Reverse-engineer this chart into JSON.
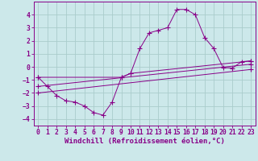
{
  "background_color": "#cce8ea",
  "grid_color": "#aacccc",
  "line_color": "#880088",
  "marker_color": "#880088",
  "xlabel": "Windchill (Refroidissement éolien,°C)",
  "xlim": [
    -0.5,
    23.5
  ],
  "ylim": [
    -4.5,
    5.0
  ],
  "yticks": [
    -4,
    -3,
    -2,
    -1,
    0,
    1,
    2,
    3,
    4
  ],
  "xticks": [
    0,
    1,
    2,
    3,
    4,
    5,
    6,
    7,
    8,
    9,
    10,
    11,
    12,
    13,
    14,
    15,
    16,
    17,
    18,
    19,
    20,
    21,
    22,
    23
  ],
  "series1_x": [
    0,
    1,
    2,
    3,
    4,
    5,
    6,
    7,
    8,
    9,
    10,
    11,
    12,
    13,
    14,
    15,
    16,
    17,
    18,
    19,
    20,
    21,
    22,
    23
  ],
  "series1_y": [
    -0.8,
    -1.5,
    -2.2,
    -2.6,
    -2.7,
    -3.0,
    -3.5,
    -3.7,
    -2.7,
    -0.8,
    -0.5,
    1.4,
    2.6,
    2.8,
    3.0,
    4.4,
    4.4,
    4.0,
    2.25,
    1.4,
    -0.05,
    -0.1,
    0.4,
    0.45
  ],
  "series2_x": [
    0,
    9,
    10,
    23
  ],
  "series2_y": [
    -0.8,
    -0.8,
    -0.5,
    0.45
  ],
  "series3_x": [
    0,
    23
  ],
  "series3_y": [
    -1.5,
    0.2
  ],
  "series4_x": [
    0,
    23
  ],
  "series4_y": [
    -2.0,
    -0.2
  ],
  "xlabel_fontsize": 6.5,
  "tick_fontsize": 5.8,
  "figwidth": 3.2,
  "figheight": 2.0,
  "dpi": 100
}
